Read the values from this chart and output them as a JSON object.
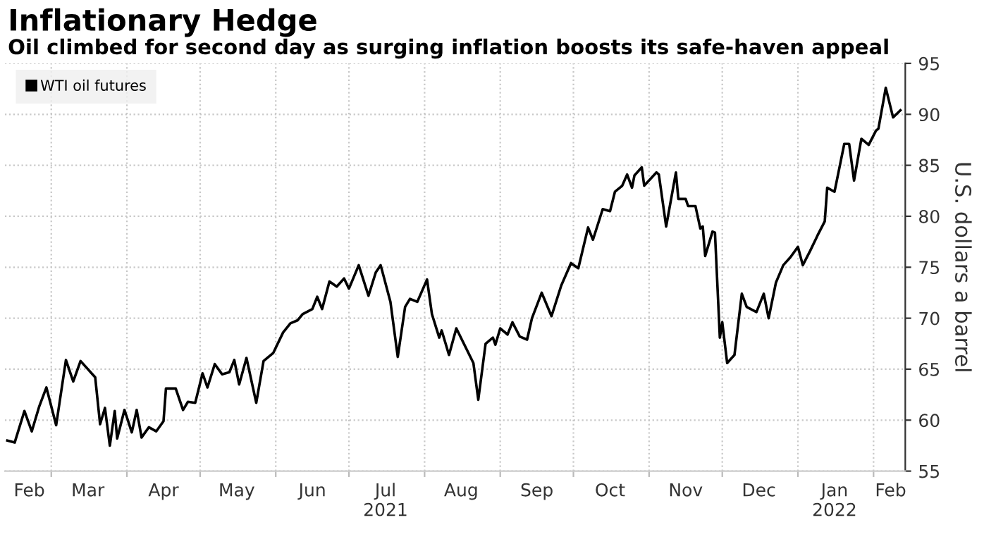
{
  "chart_data": {
    "type": "line",
    "title": "Inflationary Hedge",
    "subtitle": "Oil climbed for second day as surging inflation boosts its safe-haven appeal",
    "ylabel": "U.S. dollars a barrel",
    "x": [
      "2021-02-11",
      "2021-02-14",
      "2021-02-18",
      "2021-02-21",
      "2021-02-24",
      "2021-02-27",
      "2021-03-03",
      "2021-03-07",
      "2021-03-10",
      "2021-03-13",
      "2021-03-19",
      "2021-03-21",
      "2021-03-23",
      "2021-03-25",
      "2021-03-27",
      "2021-03-28",
      "2021-03-31",
      "2021-04-03",
      "2021-04-05",
      "2021-04-07",
      "2021-04-10",
      "2021-04-13",
      "2021-04-16",
      "2021-04-17",
      "2021-04-21",
      "2021-04-24",
      "2021-04-26",
      "2021-04-29",
      "2021-05-02",
      "2021-05-04",
      "2021-05-07",
      "2021-05-10",
      "2021-05-13",
      "2021-05-15",
      "2021-05-17",
      "2021-05-20",
      "2021-05-24",
      "2021-05-27",
      "2021-05-31",
      "2021-06-04",
      "2021-06-07",
      "2021-06-10",
      "2021-06-12",
      "2021-06-16",
      "2021-06-18",
      "2021-06-20",
      "2021-06-23",
      "2021-06-26",
      "2021-06-29",
      "2021-07-01",
      "2021-07-05",
      "2021-07-09",
      "2021-07-12",
      "2021-07-14",
      "2021-07-18",
      "2021-07-21",
      "2021-07-24",
      "2021-07-26",
      "2021-07-29",
      "2021-08-02",
      "2021-08-04",
      "2021-08-07",
      "2021-08-08",
      "2021-08-11",
      "2021-08-14",
      "2021-08-21",
      "2021-08-23",
      "2021-08-26",
      "2021-08-29",
      "2021-08-30",
      "2021-09-01",
      "2021-09-04",
      "2021-09-06",
      "2021-09-09",
      "2021-09-12",
      "2021-09-14",
      "2021-09-18",
      "2021-09-22",
      "2021-09-26",
      "2021-09-30",
      "2021-10-03",
      "2021-10-07",
      "2021-10-09",
      "2021-10-13",
      "2021-10-16",
      "2021-10-18",
      "2021-10-21",
      "2021-10-23",
      "2021-10-25",
      "2021-10-26",
      "2021-10-29",
      "2021-10-30",
      "2021-11-04",
      "2021-11-05",
      "2021-11-08",
      "2021-11-12",
      "2021-11-13",
      "2021-11-16",
      "2021-11-17",
      "2021-11-20",
      "2021-11-22",
      "2021-11-23",
      "2021-11-24",
      "2021-11-27",
      "2021-11-28",
      "2021-11-30",
      "2021-12-01",
      "2021-12-03",
      "2021-12-06",
      "2021-12-09",
      "2021-12-11",
      "2021-12-15",
      "2021-12-18",
      "2021-12-20",
      "2021-12-23",
      "2021-12-26",
      "2021-12-29",
      "2022-01-01",
      "2022-01-03",
      "2022-01-06",
      "2022-01-09",
      "2022-01-12",
      "2022-01-13",
      "2022-01-16",
      "2022-01-20",
      "2022-01-22",
      "2022-01-24",
      "2022-01-27",
      "2022-01-30",
      "2022-02-02",
      "2022-02-03",
      "2022-02-06",
      "2022-02-09",
      "2022-02-12"
    ],
    "series": [
      {
        "name": "WTI oil futures",
        "color": "#000000",
        "values": [
          58.0,
          57.8,
          60.9,
          58.9,
          61.3,
          63.2,
          59.5,
          65.9,
          63.8,
          65.8,
          64.2,
          59.6,
          61.2,
          57.5,
          60.9,
          58.2,
          61.0,
          58.8,
          61.0,
          58.3,
          59.3,
          58.9,
          59.9,
          63.1,
          63.1,
          61.0,
          61.8,
          61.7,
          64.6,
          63.2,
          65.5,
          64.5,
          64.7,
          65.9,
          63.5,
          66.1,
          61.7,
          65.8,
          66.6,
          68.6,
          69.5,
          69.8,
          70.4,
          70.9,
          72.1,
          70.9,
          73.6,
          73.1,
          73.9,
          72.9,
          75.2,
          72.2,
          74.5,
          75.2,
          71.6,
          66.2,
          71.1,
          71.9,
          71.6,
          73.8,
          70.4,
          68.1,
          68.8,
          66.4,
          69.0,
          65.6,
          62.0,
          67.5,
          68.1,
          67.4,
          69.0,
          68.4,
          69.6,
          68.2,
          67.9,
          70.0,
          72.5,
          70.2,
          73.2,
          75.4,
          74.9,
          78.9,
          77.7,
          80.7,
          80.5,
          82.4,
          83.0,
          84.1,
          82.8,
          84.0,
          84.8,
          83.0,
          84.3,
          84.1,
          79.0,
          84.3,
          81.7,
          81.7,
          81.0,
          81.0,
          78.8,
          79.0,
          76.1,
          78.5,
          78.4,
          68.1,
          69.6,
          65.6,
          66.4,
          72.4,
          71.1,
          70.6,
          72.4,
          70.0,
          73.5,
          75.2,
          76.0,
          77.0,
          75.2,
          76.6,
          78.1,
          79.5,
          82.8,
          82.4,
          87.1,
          87.1,
          83.5,
          87.6,
          87.0,
          88.4,
          88.6,
          92.6,
          89.7,
          90.4
        ]
      }
    ],
    "xlim": [
      "2021-02-10",
      "2022-02-14"
    ],
    "xticks": [
      {
        "value": "2021-02-20",
        "label": "Feb"
      },
      {
        "value": "2021-03-01",
        "label": null
      },
      {
        "value": "2021-03-16",
        "label": "Mar"
      },
      {
        "value": "2021-04-01",
        "label": null
      },
      {
        "value": "2021-04-16",
        "label": "Apr"
      },
      {
        "value": "2021-05-01",
        "label": null
      },
      {
        "value": "2021-05-16",
        "label": "May"
      },
      {
        "value": "2021-06-01",
        "label": null
      },
      {
        "value": "2021-06-16",
        "label": "Jun"
      },
      {
        "value": "2021-07-01",
        "label": null
      },
      {
        "value": "2021-07-16",
        "label": "Jul\n2021"
      },
      {
        "value": "2021-08-01",
        "label": null
      },
      {
        "value": "2021-08-16",
        "label": "Aug"
      },
      {
        "value": "2021-09-01",
        "label": null
      },
      {
        "value": "2021-09-16",
        "label": "Sep"
      },
      {
        "value": "2021-10-01",
        "label": null
      },
      {
        "value": "2021-10-16",
        "label": "Oct"
      },
      {
        "value": "2021-11-01",
        "label": null
      },
      {
        "value": "2021-11-16",
        "label": "Nov"
      },
      {
        "value": "2021-12-01",
        "label": null
      },
      {
        "value": "2021-12-16",
        "label": "Dec"
      },
      {
        "value": "2022-01-01",
        "label": null
      },
      {
        "value": "2022-01-16",
        "label": "Jan\n2022"
      },
      {
        "value": "2022-02-01",
        "label": null
      },
      {
        "value": "2022-02-08",
        "label": "Feb"
      }
    ],
    "ylim": [
      55,
      95
    ],
    "yticks": [
      55,
      60,
      65,
      70,
      75,
      80,
      85,
      90,
      95
    ],
    "grid": true,
    "legend": "top left",
    "marker": "none",
    "line_style": "solid"
  }
}
